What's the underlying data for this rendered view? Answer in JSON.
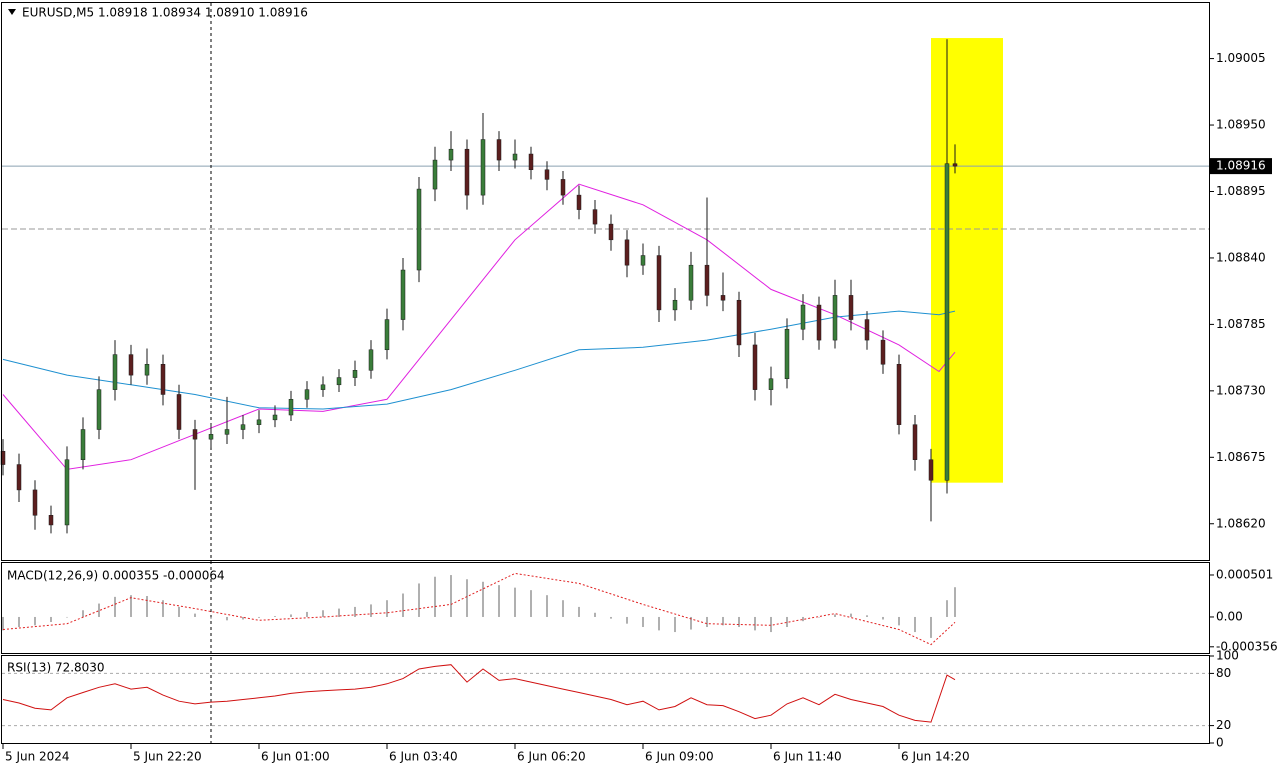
{
  "chart_data": [
    {
      "type": "candlestick",
      "title": "EURUSD,M5  1.08918 1.08934 1.08910 1.08916",
      "x": [
        0,
        4,
        8,
        12,
        16,
        20,
        24,
        28,
        32,
        36,
        40,
        44,
        48,
        52,
        56,
        60,
        64,
        68,
        72,
        76,
        80,
        84,
        88,
        92,
        96,
        100,
        104,
        108,
        112,
        116,
        120,
        124,
        128,
        132,
        136,
        140,
        144,
        148,
        152,
        156,
        160,
        164,
        168,
        172,
        176,
        180,
        184,
        188,
        192,
        196,
        200,
        204,
        208,
        212,
        216,
        220,
        224,
        228,
        232,
        236,
        238
      ],
      "open": [
        1.0868,
        1.08669,
        1.08648,
        1.08627,
        1.08619,
        1.08673,
        1.08698,
        1.08731,
        1.0876,
        1.08743,
        1.08752,
        1.08727,
        1.08698,
        1.0869,
        1.08694,
        1.08698,
        1.08702,
        1.08706,
        1.0871,
        1.08723,
        1.08731,
        1.08735,
        1.08741,
        1.08747,
        1.08764,
        1.08789,
        1.0883,
        1.08897,
        1.08921,
        1.0893,
        1.08892,
        1.08938,
        1.08921,
        1.08926,
        1.08913,
        1.08905,
        1.08892,
        1.0888,
        1.08868,
        1.08855,
        1.08834,
        1.08842,
        1.08797,
        1.08805,
        1.08834,
        1.08809,
        1.08805,
        1.08768,
        1.08731,
        1.0874,
        1.08781,
        1.08801,
        1.08772,
        1.08809,
        1.08789,
        1.08772,
        1.08752,
        1.08702,
        1.08673,
        1.08656,
        1.08918
      ],
      "high": [
        1.0869,
        1.08678,
        1.08656,
        1.08635,
        1.08684,
        1.08708,
        1.08742,
        1.08772,
        1.08768,
        1.08765,
        1.0876,
        1.08735,
        1.08706,
        1.08703,
        1.08725,
        1.0871,
        1.08714,
        1.08718,
        1.0873,
        1.08738,
        1.08742,
        1.08748,
        1.08755,
        1.08772,
        1.08798,
        1.0884,
        1.08907,
        1.08932,
        1.08945,
        1.08938,
        1.0896,
        1.08945,
        1.08938,
        1.08932,
        1.0892,
        1.08912,
        1.089,
        1.08888,
        1.08876,
        1.08863,
        1.08852,
        1.0885,
        1.08815,
        1.08845,
        1.0889,
        1.08828,
        1.08812,
        1.08778,
        1.0875,
        1.0879,
        1.0881,
        1.08808,
        1.08822,
        1.08822,
        1.08796,
        1.0878,
        1.0876,
        1.0871,
        1.08682,
        1.09021,
        1.08934
      ],
      "low": [
        1.0866,
        1.08638,
        1.08615,
        1.08612,
        1.08612,
        1.08665,
        1.0869,
        1.08722,
        1.08735,
        1.08735,
        1.08718,
        1.0869,
        1.08648,
        1.08683,
        1.08686,
        1.0869,
        1.08695,
        1.087,
        1.08705,
        1.08716,
        1.08725,
        1.08729,
        1.08734,
        1.0874,
        1.08756,
        1.0878,
        1.0882,
        1.08887,
        1.08912,
        1.0888,
        1.08884,
        1.08912,
        1.08914,
        1.08905,
        1.08896,
        1.08884,
        1.08872,
        1.0886,
        1.08846,
        1.08824,
        1.08826,
        1.08787,
        1.08788,
        1.08797,
        1.088,
        1.08796,
        1.08758,
        1.08722,
        1.08718,
        1.08732,
        1.08772,
        1.08764,
        1.08765,
        1.0878,
        1.08764,
        1.08744,
        1.08694,
        1.08664,
        1.08622,
        1.08645,
        1.0891
      ],
      "close": [
        1.08669,
        1.08648,
        1.08627,
        1.08619,
        1.08673,
        1.08698,
        1.08731,
        1.0876,
        1.08743,
        1.08752,
        1.08727,
        1.08698,
        1.0869,
        1.08694,
        1.08698,
        1.08702,
        1.08706,
        1.0871,
        1.08723,
        1.08731,
        1.08735,
        1.08741,
        1.08747,
        1.08764,
        1.08789,
        1.0883,
        1.08897,
        1.08921,
        1.0893,
        1.08892,
        1.08938,
        1.08921,
        1.08926,
        1.08913,
        1.08905,
        1.08892,
        1.0888,
        1.08868,
        1.08855,
        1.08834,
        1.08842,
        1.08797,
        1.08805,
        1.08834,
        1.08809,
        1.08805,
        1.08768,
        1.08731,
        1.0874,
        1.08781,
        1.08801,
        1.08772,
        1.08809,
        1.08789,
        1.08772,
        1.08752,
        1.08702,
        1.08673,
        1.08656,
        1.08918,
        1.08916
      ],
      "up_color": "#3a7d3a",
      "down_color": "#5c1f1f",
      "wick_color": "#1a1a1a",
      "series": [
        {
          "color": "#e020e0",
          "x": [
            0,
            16,
            32,
            48,
            64,
            80,
            96,
            112,
            128,
            144,
            160,
            176,
            192,
            208,
            224,
            234,
            238
          ],
          "values": [
            1.08727,
            1.08665,
            1.08673,
            1.08694,
            1.08715,
            1.08713,
            1.08723,
            1.08789,
            1.08855,
            1.08901,
            1.08884,
            1.08855,
            1.08814,
            1.08793,
            1.08768,
            1.08746,
            1.08762
          ]
        },
        {
          "color": "#1e90d0",
          "x": [
            0,
            16,
            32,
            48,
            64,
            80,
            96,
            112,
            128,
            144,
            160,
            176,
            192,
            208,
            224,
            234,
            238
          ],
          "values": [
            1.08756,
            1.08743,
            1.08735,
            1.08727,
            1.08716,
            1.08715,
            1.08719,
            1.08731,
            1.08747,
            1.08764,
            1.08766,
            1.08772,
            1.08781,
            1.08791,
            1.08796,
            1.08793,
            1.08796
          ]
        }
      ],
      "last_price": 1.08916,
      "hline": 1.08864,
      "vline": 52,
      "highlight": {
        "x": [
          232,
          250
        ],
        "y": [
          1.08654,
          1.09022
        ],
        "color": "#ffff00"
      },
      "xlim": [
        -0.75,
        301.5
      ],
      "xticks": [
        {
          "value": 0,
          "label": "5 Jun 2024"
        },
        {
          "value": 32,
          "label": "5 Jun 22:20"
        },
        {
          "value": 64,
          "label": "6 Jun 01:00"
        },
        {
          "value": 96,
          "label": "6 Jun 03:40"
        },
        {
          "value": 128,
          "label": "6 Jun 06:20"
        },
        {
          "value": 160,
          "label": "6 Jun 09:00"
        },
        {
          "value": 192,
          "label": "6 Jun 11:40"
        },
        {
          "value": 224,
          "label": "6 Jun 14:20"
        }
      ],
      "ylim": [
        1.0859,
        1.09051
      ],
      "yticks": [
        1.09005,
        {
          "value": 1.0895,
          "label": "1.08950"
        },
        1.08895,
        {
          "value": 1.0884,
          "label": "1.08840"
        },
        1.08785,
        {
          "value": 1.0873,
          "label": "1.08730"
        },
        1.08675,
        {
          "value": 1.0862,
          "label": "1.08620"
        }
      ]
    },
    {
      "type": "macd",
      "title": "MACD(12,26,9) 0.000355 -0.000064",
      "values": [
        -0.00016,
        -0.00012,
        -0.0001,
        -6e-05,
        0,
        8e-05,
        0.00016,
        0.00024,
        0.00026,
        0.00025,
        0.0002,
        0.00012,
        4e-05,
        -2e-05,
        -4e-05,
        -3e-05,
        -1e-05,
        1e-05,
        3e-05,
        6e-05,
        8e-05,
        0.0001,
        0.00012,
        0.00015,
        0.0002,
        0.00028,
        0.0004,
        0.00048,
        0.0005,
        0.00045,
        0.00042,
        0.00038,
        0.00035,
        0.00032,
        0.00026,
        0.0002,
        0.00012,
        5e-05,
        -2e-05,
        -8e-05,
        -0.00012,
        -0.00016,
        -0.00018,
        -0.00015,
        -0.00012,
        -0.0001,
        -0.00012,
        -0.00016,
        -0.00018,
        -0.00012,
        -5e-05,
        0,
        3e-05,
        4e-05,
        2e-05,
        -3e-05,
        -0.0001,
        -0.00018,
        -0.00025,
        0.0002,
        0.000355
      ],
      "color": "#b0b0b0",
      "signal": {
        "color": "#e02020",
        "x": [
          0,
          16,
          32,
          48,
          64,
          80,
          96,
          112,
          128,
          144,
          160,
          176,
          192,
          208,
          224,
          232,
          238
        ],
        "values": [
          -0.00015,
          -8e-05,
          0.00023,
          0.0001,
          -4e-05,
          0,
          5e-05,
          0.00015,
          0.00052,
          0.0004,
          0.00015,
          -8e-05,
          -0.0001,
          4e-05,
          -0.00015,
          -0.00033,
          -6.4e-05
        ]
      },
      "ylim": [
        -0.00043,
        0.000644
      ],
      "yticks": [
        0.000501,
        {
          "value": 0,
          "label": "0.00"
        },
        -0.000356
      ]
    },
    {
      "type": "line",
      "title": "RSI(13) 72.8030",
      "values": [
        50,
        46,
        40,
        38,
        52,
        58,
        64,
        68,
        62,
        64,
        55,
        48,
        45,
        47,
        48,
        50,
        52,
        54,
        57,
        59,
        60,
        61,
        62,
        64,
        68,
        74,
        85,
        88,
        90,
        70,
        85,
        72,
        74,
        70,
        66,
        62,
        58,
        54,
        50,
        44,
        48,
        38,
        42,
        52,
        44,
        43,
        36,
        28,
        32,
        45,
        52,
        44,
        56,
        50,
        46,
        42,
        32,
        26,
        24,
        78,
        72.803
      ],
      "color": "#d01010",
      "levels": [
        80,
        20
      ],
      "ylim": [
        0,
        100
      ],
      "yticks": [
        100,
        80,
        20,
        0
      ]
    }
  ]
}
